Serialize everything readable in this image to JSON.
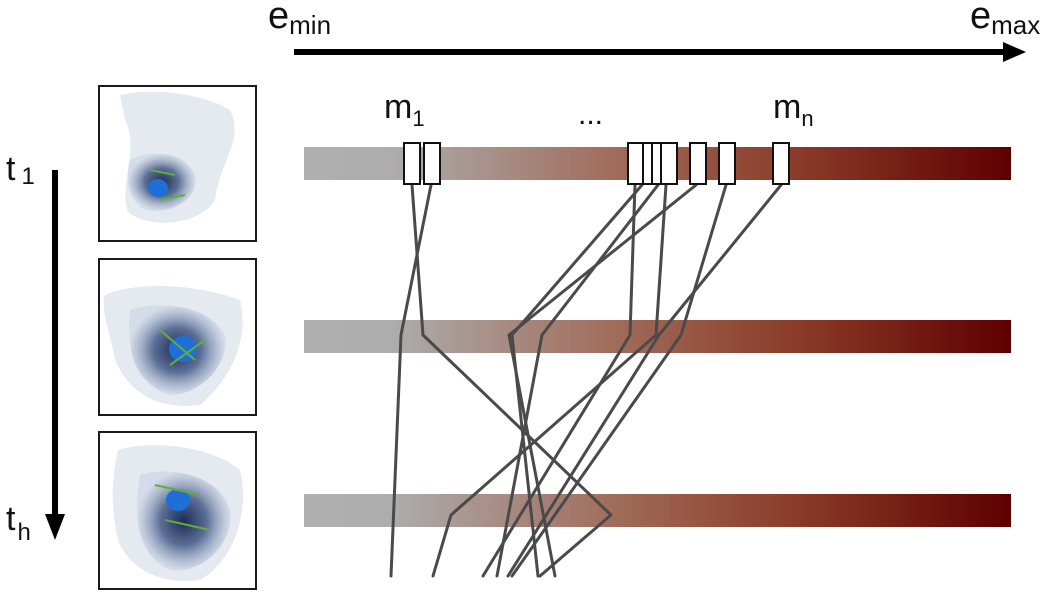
{
  "labels": {
    "energy_min_base": "e",
    "energy_min_sub": "min",
    "energy_max_base": "e",
    "energy_max_sub": "max",
    "time_start_base": "t",
    "time_start_sub": "1",
    "time_end_base": "t",
    "time_end_sub": "h",
    "mode_first_base": "m",
    "mode_first_sub": "1",
    "mode_last_base": "m",
    "mode_last_sub": "n",
    "ellipsis": "..."
  },
  "colors": {
    "bar_start": "#b0b0b0",
    "bar_mid": "#a06a58",
    "bar_end": "#5e0000",
    "path_line": "#4a4a4a",
    "arrow": "#000000"
  },
  "thumbnails": [
    {
      "name": "time-step-1-structure-thumbnail"
    },
    {
      "name": "time-step-2-structure-thumbnail"
    },
    {
      "name": "time-step-h-structure-thumbnail"
    }
  ],
  "bars": [
    {
      "name": "energy-bar-time-1"
    },
    {
      "name": "energy-bar-time-2"
    },
    {
      "name": "energy-bar-time-h"
    }
  ]
}
